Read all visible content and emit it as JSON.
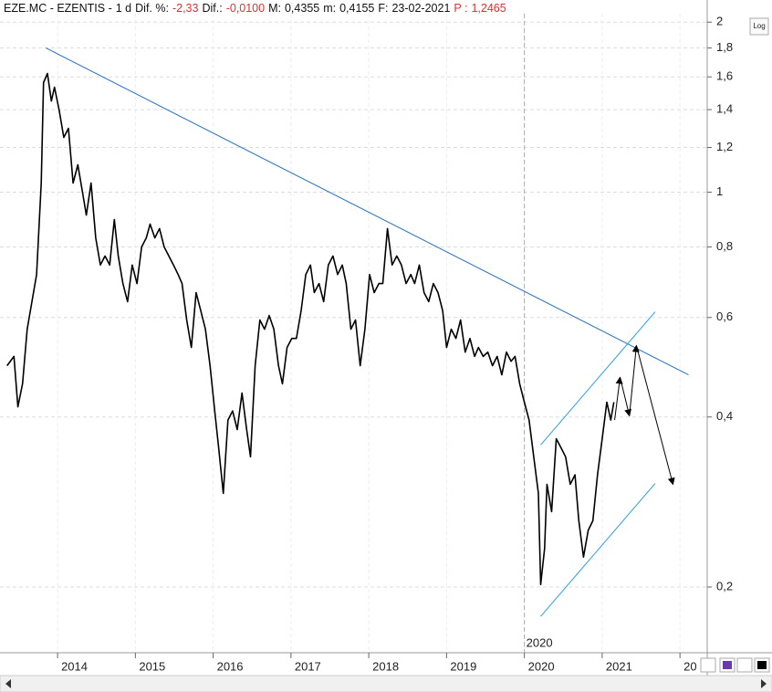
{
  "chart_data": {
    "type": "line",
    "header": [
      {
        "text": "EZE.MC - EZENTIS -",
        "color": "#111111"
      },
      {
        "text": "1 d",
        "color": "#111111"
      },
      {
        "text": "Dif. %:",
        "color": "#111111"
      },
      {
        "text": "-2,33",
        "color": "#e03030"
      },
      {
        "text": "Dif.:",
        "color": "#111111"
      },
      {
        "text": "-0,0100",
        "color": "#e03030"
      },
      {
        "text": "M:",
        "color": "#111111"
      },
      {
        "text": "0,4355",
        "color": "#111111"
      },
      {
        "text": "m:",
        "color": "#111111"
      },
      {
        "text": "0,4155",
        "color": "#111111"
      },
      {
        "text": "F:",
        "color": "#111111"
      },
      {
        "text": "23-02-2021",
        "color": "#111111"
      },
      {
        "text": "P :",
        "color": "#e03030"
      },
      {
        "text": "1,2465",
        "color": "#e03030"
      }
    ],
    "log_button": "Log",
    "log_scale": true,
    "grid": true,
    "color": "#000000",
    "x": [
      2013.35,
      2013.44,
      2013.49,
      2013.55,
      2013.61,
      2013.67,
      2013.73,
      2013.79,
      2013.82,
      2013.87,
      2013.92,
      2013.96,
      2014.02,
      2014.08,
      2014.14,
      2014.2,
      2014.26,
      2014.32,
      2014.37,
      2014.43,
      2014.49,
      2014.55,
      2014.61,
      2014.67,
      2014.73,
      2014.78,
      2014.84,
      2014.9,
      2014.96,
      2015.02,
      2015.08,
      2015.14,
      2015.19,
      2015.25,
      2015.31,
      2015.37,
      2015.43,
      2015.49,
      2015.55,
      2015.6,
      2015.66,
      2015.72,
      2015.78,
      2015.84,
      2015.9,
      2015.96,
      2016.02,
      2016.07,
      2016.13,
      2016.19,
      2016.25,
      2016.31,
      2016.37,
      2016.43,
      2016.48,
      2016.54,
      2016.6,
      2016.66,
      2016.72,
      2016.78,
      2016.84,
      2016.89,
      2016.95,
      2017.01,
      2017.07,
      2017.13,
      2017.19,
      2017.25,
      2017.3,
      2017.36,
      2017.42,
      2017.48,
      2017.54,
      2017.6,
      2017.66,
      2017.71,
      2017.77,
      2017.83,
      2017.89,
      2017.95,
      2018.01,
      2018.07,
      2018.13,
      2018.18,
      2018.24,
      2018.3,
      2018.36,
      2018.42,
      2018.48,
      2018.54,
      2018.59,
      2018.65,
      2018.71,
      2018.77,
      2018.83,
      2018.89,
      2018.95,
      2019.0,
      2019.06,
      2019.12,
      2019.18,
      2019.24,
      2019.3,
      2019.36,
      2019.41,
      2019.47,
      2019.53,
      2019.59,
      2019.65,
      2019.71,
      2019.77,
      2019.83,
      2019.88,
      2019.94,
      2020.0,
      2020.06,
      2020.12,
      2020.18,
      2020.21,
      2020.26,
      2020.29,
      2020.35,
      2020.41,
      2020.47,
      2020.53,
      2020.59,
      2020.65,
      2020.7,
      2020.76,
      2020.82,
      2020.88,
      2020.94,
      2021.0,
      2021.06,
      2021.11,
      2021.15
    ],
    "values": [
      0.493,
      0.512,
      0.417,
      0.458,
      0.572,
      0.64,
      0.715,
      1.038,
      1.563,
      1.622,
      1.45,
      1.534,
      1.398,
      1.25,
      1.297,
      1.038,
      1.118,
      1.0,
      0.911,
      1.038,
      0.83,
      0.743,
      0.771,
      0.743,
      0.894,
      0.771,
      0.689,
      0.64,
      0.743,
      0.689,
      0.8,
      0.83,
      0.878,
      0.83,
      0.862,
      0.8,
      0.771,
      0.743,
      0.715,
      0.689,
      0.594,
      0.531,
      0.664,
      0.617,
      0.572,
      0.493,
      0.41,
      0.353,
      0.293,
      0.395,
      0.41,
      0.38,
      0.441,
      0.38,
      0.34,
      0.493,
      0.594,
      0.572,
      0.605,
      0.572,
      0.493,
      0.458,
      0.531,
      0.551,
      0.551,
      0.617,
      0.715,
      0.743,
      0.664,
      0.689,
      0.64,
      0.743,
      0.771,
      0.715,
      0.743,
      0.689,
      0.572,
      0.594,
      0.493,
      0.572,
      0.715,
      0.664,
      0.689,
      0.689,
      0.862,
      0.743,
      0.771,
      0.743,
      0.689,
      0.715,
      0.689,
      0.743,
      0.664,
      0.64,
      0.689,
      0.664,
      0.617,
      0.531,
      0.572,
      0.551,
      0.594,
      0.521,
      0.551,
      0.512,
      0.531,
      0.512,
      0.521,
      0.493,
      0.512,
      0.475,
      0.521,
      0.502,
      0.512,
      0.458,
      0.425,
      0.395,
      0.34,
      0.293,
      0.202,
      0.234,
      0.304,
      0.272,
      0.366,
      0.353,
      0.34,
      0.304,
      0.316,
      0.262,
      0.226,
      0.252,
      0.262,
      0.316,
      0.366,
      0.425,
      0.395,
      0.425
    ],
    "trendlines": [
      {
        "color": "#1f6fc4",
        "x": [
          2013.85,
          2022.11
        ],
        "y": [
          1.8,
          0.475
        ]
      },
      {
        "color": "#2a9de8",
        "x": [
          2020.21,
          2021.68
        ],
        "y": [
          0.357,
          0.614
        ]
      },
      {
        "color": "#2a9de8",
        "x": [
          2020.21,
          2021.68
        ],
        "y": [
          0.1774,
          0.305
        ]
      }
    ],
    "arrows": {
      "color": "#000000",
      "x": [
        2021.16,
        2021.23,
        2021.35,
        2021.44,
        2021.91
      ],
      "y": [
        0.395,
        0.47,
        0.402,
        0.535,
        0.304
      ]
    },
    "annotation": {
      "text": "2020",
      "x": 2020
    },
    "xlim": [
      2013.26,
      2022.35
    ],
    "xticks": [
      2014,
      2015,
      2016,
      2017,
      2018,
      2019,
      2020,
      2021,
      {
        "value": 2022,
        "label": "20"
      }
    ],
    "ylim": [
      0.153,
      2.07
    ],
    "yticks": [
      {
        "value": 0.2,
        "label": "0,2"
      },
      {
        "value": 0.4,
        "label": "0,4"
      },
      {
        "value": 0.6,
        "label": "0,6"
      },
      {
        "value": 0.8,
        "label": "0,8"
      },
      1,
      {
        "value": 1.2,
        "label": "1,2"
      },
      {
        "value": 1.4,
        "label": "1,4"
      },
      {
        "value": 1.6,
        "label": "1,6"
      },
      {
        "value": 1.8,
        "label": "1,8"
      },
      2
    ]
  }
}
